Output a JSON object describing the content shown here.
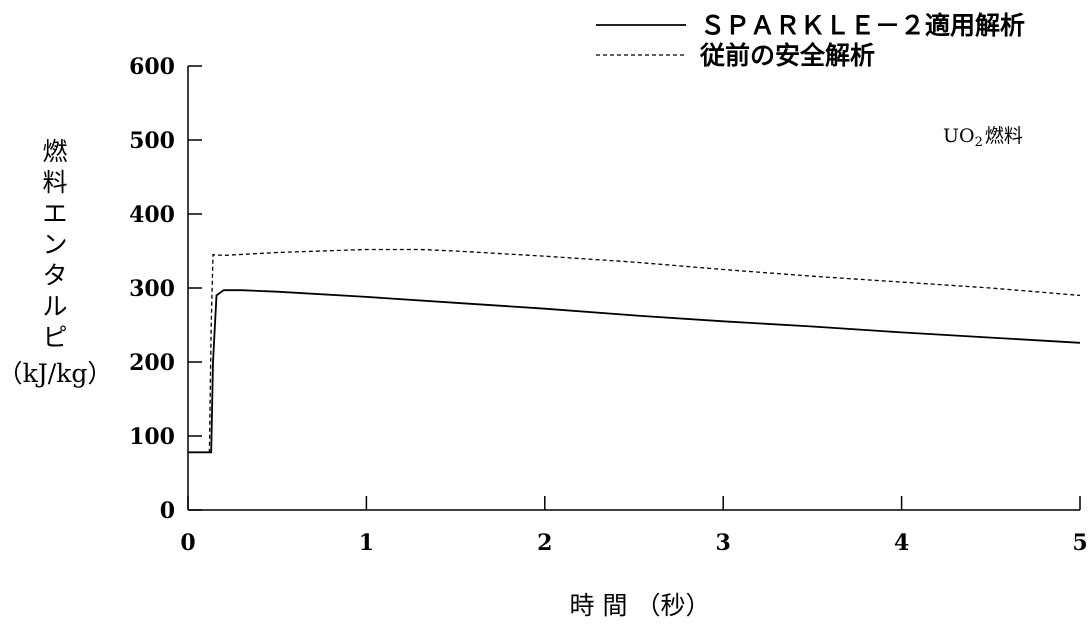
{
  "chart_data": {
    "type": "line",
    "title": "",
    "xlabel": "時 間 （秒）",
    "ylabel": "燃料エンタルピ（kJ/kg）",
    "ylabel_lines": [
      "燃",
      "料",
      "エ",
      "ン",
      "タ",
      "ル",
      "ピ"
    ],
    "ylabel_unit": "（kJ/kg）",
    "annotation": {
      "prefix": "UO",
      "subscript": "2",
      "suffix": "燃料"
    },
    "xlim": [
      0,
      5
    ],
    "ylim": [
      0,
      600
    ],
    "xticks": [
      0,
      1,
      2,
      3,
      4,
      5
    ],
    "yticks": [
      0,
      100,
      200,
      300,
      400,
      500,
      600
    ],
    "xtick_labels": [
      "0",
      "1",
      "2",
      "3",
      "4",
      "5"
    ],
    "ytick_labels": [
      "0",
      "100",
      "200",
      "300",
      "400",
      "500",
      "600"
    ],
    "grid": false,
    "legend_position": "top-right",
    "series": [
      {
        "name": "ＳＰＡＲＫＬＥ－２適用解析",
        "style": "solid",
        "color": "#000000",
        "x": [
          0,
          0.13,
          0.14,
          0.16,
          0.2,
          0.3,
          0.5,
          1.0,
          1.5,
          2.0,
          2.5,
          3.0,
          3.5,
          4.0,
          4.5,
          5.0
        ],
        "y": [
          78,
          78,
          200,
          290,
          297,
          297,
          295,
          288,
          280,
          272,
          263,
          255,
          248,
          240,
          233,
          226
        ]
      },
      {
        "name": "従前の安全解析",
        "style": "dashed",
        "color": "#000000",
        "x": [
          0,
          0.12,
          0.13,
          0.14,
          0.2,
          0.5,
          1.0,
          1.3,
          1.5,
          2.0,
          2.5,
          3.0,
          3.5,
          4.0,
          4.5,
          5.0
        ],
        "y": [
          78,
          78,
          250,
          345,
          344,
          348,
          352,
          352,
          350,
          343,
          335,
          325,
          316,
          308,
          300,
          290
        ]
      }
    ]
  }
}
